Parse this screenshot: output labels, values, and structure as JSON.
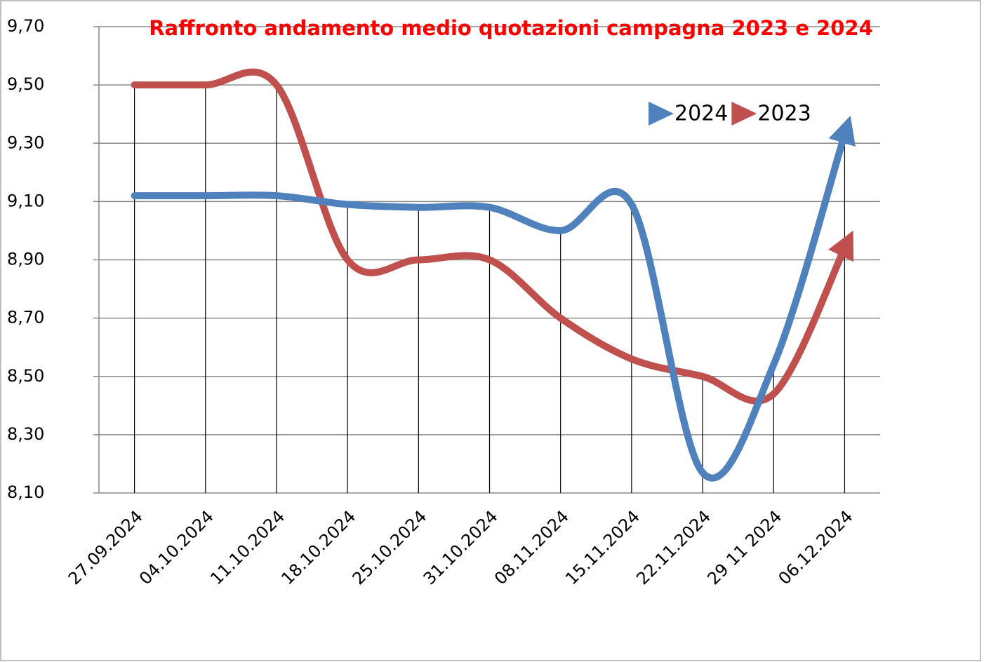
{
  "chart_data": {
    "type": "line",
    "title": "Raffronto andamento medio quotazioni campagna 2023 e 2024",
    "categories": [
      "27.09.2024",
      "04.10.2024",
      "11.10.2024",
      "18.10.2024",
      "25.10.2024",
      "31.10.2024",
      "08.11.2024",
      "15.11.2024",
      "22.11.2024",
      "29 11 2024",
      "06.12.2024"
    ],
    "series": [
      {
        "name": "2024",
        "color": "#4f81bd",
        "values": [
          9.12,
          9.12,
          9.12,
          9.09,
          9.08,
          9.08,
          9.0,
          9.09,
          8.17,
          8.54,
          9.33
        ]
      },
      {
        "name": "2023",
        "color": "#c0504d",
        "values": [
          9.5,
          9.5,
          9.5,
          8.9,
          8.9,
          8.9,
          8.7,
          8.56,
          8.5,
          8.44,
          8.94
        ]
      }
    ],
    "ylim": [
      8.1,
      9.7
    ],
    "yticks": [
      {
        "value": 8.1,
        "label": "8,10"
      },
      {
        "value": 8.3,
        "label": "8,30"
      },
      {
        "value": 8.5,
        "label": "8,50"
      },
      {
        "value": 8.7,
        "label": "8,70"
      },
      {
        "value": 8.9,
        "label": "8,90"
      },
      {
        "value": 9.1,
        "label": "9,10"
      },
      {
        "value": 9.3,
        "label": "9,30"
      },
      {
        "value": 9.5,
        "label": "9,50"
      },
      {
        "value": 9.7,
        "label": "9,70"
      }
    ],
    "grid": true,
    "legend": "top-right",
    "drop_lines": true,
    "smooth": true
  }
}
